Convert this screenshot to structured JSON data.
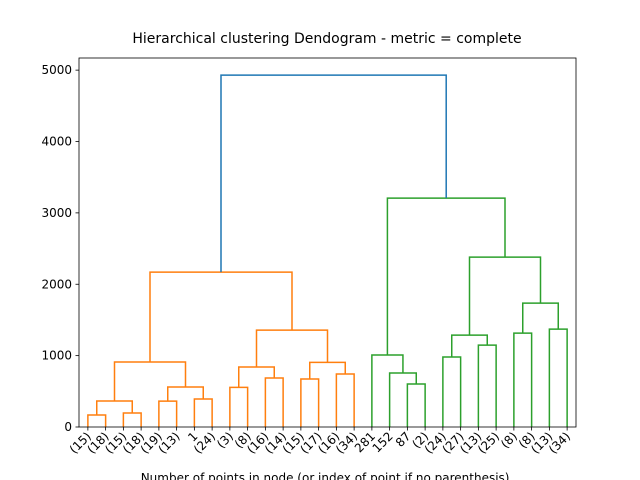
{
  "chart_data": {
    "type": "dendrogram",
    "title": "Hierarchical clustering Dendogram - metric = complete",
    "xlabel": "Number of points in node (or index of point if no parenthesis).",
    "xlim": [
      0,
      280
    ],
    "ylim": [
      0,
      5170
    ],
    "yticks": [
      0,
      1000,
      2000,
      3000,
      4000,
      5000
    ],
    "xticks": [
      {
        "value": 5,
        "label": "(15)"
      },
      {
        "value": 15,
        "label": "(18)"
      },
      {
        "value": 25,
        "label": "(15)"
      },
      {
        "value": 35,
        "label": "(18)"
      },
      {
        "value": 45,
        "label": "(19)"
      },
      {
        "value": 55,
        "label": "(13)"
      },
      {
        "value": 65,
        "label": "1"
      },
      {
        "value": 75,
        "label": "(24)"
      },
      {
        "value": 85,
        "label": "(3)"
      },
      {
        "value": 95,
        "label": "(8)"
      },
      {
        "value": 105,
        "label": "(16)"
      },
      {
        "value": 115,
        "label": "(14)"
      },
      {
        "value": 125,
        "label": "(15)"
      },
      {
        "value": 135,
        "label": "(17)"
      },
      {
        "value": 145,
        "label": "(16)"
      },
      {
        "value": 155,
        "label": "(34)"
      },
      {
        "value": 165,
        "label": "281"
      },
      {
        "value": 175,
        "label": "152"
      },
      {
        "value": 185,
        "label": "87"
      },
      {
        "value": 195,
        "label": "(2)"
      },
      {
        "value": 205,
        "label": "(24)"
      },
      {
        "value": 215,
        "label": "(27)"
      },
      {
        "value": 225,
        "label": "(13)"
      },
      {
        "value": 235,
        "label": "(25)"
      },
      {
        "value": 245,
        "label": "(8)"
      },
      {
        "value": 255,
        "label": "(8)"
      },
      {
        "value": 265,
        "label": "(13)"
      },
      {
        "value": 275,
        "label": "(34)"
      }
    ],
    "links": [
      {
        "color": "#ff7f0e",
        "icoord": [
          5,
          5,
          15,
          15
        ],
        "dcoord": [
          0,
          168,
          168,
          0
        ]
      },
      {
        "color": "#ff7f0e",
        "icoord": [
          25,
          25,
          35,
          35
        ],
        "dcoord": [
          0,
          196,
          196,
          0
        ]
      },
      {
        "color": "#ff7f0e",
        "icoord": [
          10,
          10,
          30,
          30
        ],
        "dcoord": [
          168,
          364,
          364,
          196
        ]
      },
      {
        "color": "#ff7f0e",
        "icoord": [
          45,
          45,
          55,
          55
        ],
        "dcoord": [
          0,
          363,
          363,
          0
        ]
      },
      {
        "color": "#ff7f0e",
        "icoord": [
          65,
          65,
          75,
          75
        ],
        "dcoord": [
          0,
          392,
          392,
          0
        ]
      },
      {
        "color": "#ff7f0e",
        "icoord": [
          50,
          50,
          70,
          70
        ],
        "dcoord": [
          363,
          560,
          560,
          392
        ]
      },
      {
        "color": "#ff7f0e",
        "icoord": [
          20,
          20,
          60,
          60
        ],
        "dcoord": [
          364,
          910,
          910,
          560
        ]
      },
      {
        "color": "#ff7f0e",
        "icoord": [
          85,
          85,
          95,
          95
        ],
        "dcoord": [
          0,
          556,
          556,
          0
        ]
      },
      {
        "color": "#ff7f0e",
        "icoord": [
          105,
          105,
          115,
          115
        ],
        "dcoord": [
          0,
          686,
          686,
          0
        ]
      },
      {
        "color": "#ff7f0e",
        "icoord": [
          90,
          90,
          110,
          110
        ],
        "dcoord": [
          556,
          840,
          840,
          686
        ]
      },
      {
        "color": "#ff7f0e",
        "icoord": [
          125,
          125,
          135,
          135
        ],
        "dcoord": [
          0,
          672,
          672,
          0
        ]
      },
      {
        "color": "#ff7f0e",
        "icoord": [
          145,
          145,
          155,
          155
        ],
        "dcoord": [
          0,
          742,
          742,
          0
        ]
      },
      {
        "color": "#ff7f0e",
        "icoord": [
          130,
          130,
          150,
          150
        ],
        "dcoord": [
          672,
          906,
          906,
          742
        ]
      },
      {
        "color": "#ff7f0e",
        "icoord": [
          100,
          100,
          140,
          140
        ],
        "dcoord": [
          840,
          1358,
          1358,
          906
        ]
      },
      {
        "color": "#ff7f0e",
        "icoord": [
          40,
          40,
          120,
          120
        ],
        "dcoord": [
          910,
          2170,
          2170,
          1358
        ]
      },
      {
        "color": "#2ca02c",
        "icoord": [
          185,
          185,
          195,
          195
        ],
        "dcoord": [
          0,
          602,
          602,
          0
        ]
      },
      {
        "color": "#2ca02c",
        "icoord": [
          175,
          175,
          190,
          190
        ],
        "dcoord": [
          0,
          756,
          756,
          602
        ]
      },
      {
        "color": "#2ca02c",
        "icoord": [
          165,
          165,
          182.5,
          182.5
        ],
        "dcoord": [
          0,
          1008,
          1008,
          756
        ]
      },
      {
        "color": "#2ca02c",
        "icoord": [
          205,
          205,
          215,
          215
        ],
        "dcoord": [
          0,
          980,
          980,
          0
        ]
      },
      {
        "color": "#2ca02c",
        "icoord": [
          225,
          225,
          235,
          235
        ],
        "dcoord": [
          0,
          1148,
          1148,
          0
        ]
      },
      {
        "color": "#2ca02c",
        "icoord": [
          210,
          210,
          230,
          230
        ],
        "dcoord": [
          980,
          1288,
          1288,
          1148
        ]
      },
      {
        "color": "#2ca02c",
        "icoord": [
          245,
          245,
          255,
          255
        ],
        "dcoord": [
          0,
          1316,
          1316,
          0
        ]
      },
      {
        "color": "#2ca02c",
        "icoord": [
          265,
          265,
          275,
          275
        ],
        "dcoord": [
          0,
          1372,
          1372,
          0
        ]
      },
      {
        "color": "#2ca02c",
        "icoord": [
          250,
          250,
          270,
          270
        ],
        "dcoord": [
          1316,
          1736,
          1736,
          1372
        ]
      },
      {
        "color": "#2ca02c",
        "icoord": [
          220,
          220,
          260,
          260
        ],
        "dcoord": [
          1288,
          2380,
          2380,
          1736
        ]
      },
      {
        "color": "#2ca02c",
        "icoord": [
          173.75,
          173.75,
          240,
          240
        ],
        "dcoord": [
          1008,
          3207,
          3207,
          2380
        ]
      },
      {
        "color": "#1f77b4",
        "icoord": [
          80,
          80,
          206.875,
          206.875
        ],
        "dcoord": [
          2170,
          4930,
          4930,
          3207
        ]
      }
    ]
  }
}
